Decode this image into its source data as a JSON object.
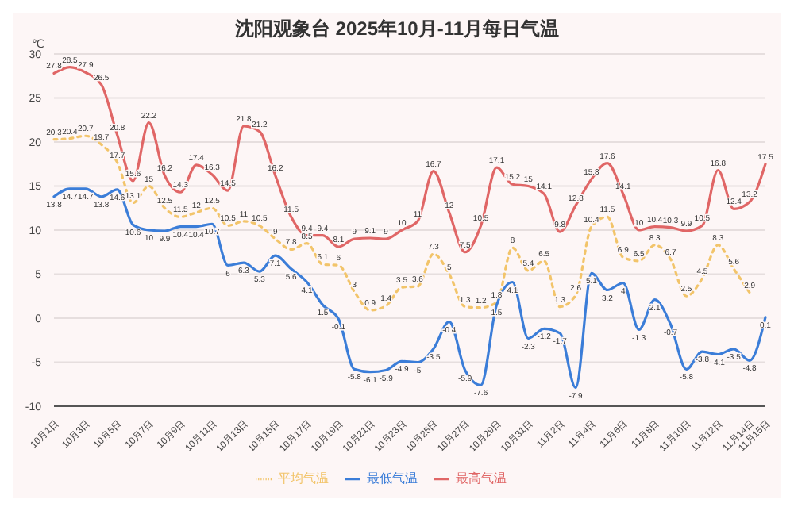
{
  "chart_data": {
    "type": "line",
    "title": "沈阳观象台 2025年10月-11月每日气温",
    "ylabel": "℃",
    "categories": [
      "10月1日",
      null,
      "10月3日",
      null,
      "10月5日",
      null,
      "10月7日",
      null,
      "10月9日",
      null,
      "10月11日",
      null,
      "10月13日",
      null,
      "10月15日",
      null,
      "10月17日",
      null,
      "10月19日",
      null,
      "10月21日",
      null,
      "10月23日",
      null,
      "10月25日",
      null,
      "10月27日",
      null,
      "10月29日",
      null,
      "10月31日",
      null,
      "11月2日",
      null,
      "11月4日",
      null,
      "11月6日",
      null,
      "11月8日",
      null,
      "11月10日",
      null,
      "11月12日",
      null,
      "11月14日",
      "11月15日"
    ],
    "series": [
      {
        "name": "平均气温",
        "color": "#f2c46a",
        "line_style": "dotted",
        "values": [
          20.3,
          20.4,
          20.7,
          19.7,
          17.7,
          13.1,
          15.0,
          12.5,
          11.5,
          12.0,
          12.5,
          10.5,
          11.0,
          10.5,
          9.0,
          7.8,
          8.5,
          6.1,
          6.0,
          3.0,
          0.9,
          1.4,
          3.5,
          3.6,
          7.3,
          5.0,
          1.3,
          1.2,
          1.8,
          8.0,
          5.4,
          6.5,
          1.3,
          2.6,
          10.4,
          11.5,
          6.9,
          6.5,
          8.3,
          6.7,
          2.5,
          4.5,
          8.3,
          5.6,
          2.9,
          null
        ]
      },
      {
        "name": "最低气温",
        "color": "#3b7dd8",
        "line_style": "solid",
        "values": [
          13.8,
          14.7,
          14.7,
          13.8,
          14.6,
          10.6,
          10.0,
          9.9,
          10.4,
          10.4,
          10.7,
          6.0,
          6.3,
          5.3,
          7.1,
          5.6,
          4.1,
          1.5,
          -0.1,
          -5.8,
          -6.1,
          -5.9,
          -4.9,
          -5.0,
          -3.5,
          -0.4,
          -5.9,
          -7.6,
          1.5,
          4.1,
          -2.3,
          -1.2,
          -1.7,
          -7.9,
          5.1,
          3.2,
          4.0,
          -1.3,
          2.1,
          -0.7,
          -5.8,
          -3.8,
          -4.1,
          -3.5,
          -4.8,
          0.1
        ]
      },
      {
        "name": "最高气温",
        "color": "#e06666",
        "line_style": "solid",
        "values": [
          27.8,
          28.5,
          27.9,
          26.5,
          20.8,
          15.6,
          22.2,
          16.2,
          14.3,
          17.4,
          16.3,
          14.5,
          21.8,
          21.2,
          16.2,
          11.5,
          9.4,
          9.4,
          8.1,
          9.0,
          9.1,
          9.0,
          10.0,
          11.0,
          16.7,
          12.0,
          7.5,
          10.5,
          17.1,
          15.2,
          15.0,
          14.1,
          9.8,
          12.8,
          15.8,
          17.6,
          14.1,
          10.0,
          10.4,
          10.3,
          9.9,
          10.5,
          16.8,
          12.4,
          13.2,
          17.5
        ]
      }
    ],
    "ylim": [
      -10,
      30
    ],
    "yticks": [
      -10,
      -5,
      0,
      5,
      10,
      15,
      20,
      25,
      30
    ],
    "grid": "y",
    "legend": "bottom",
    "marker": "none",
    "data_labels": true
  }
}
